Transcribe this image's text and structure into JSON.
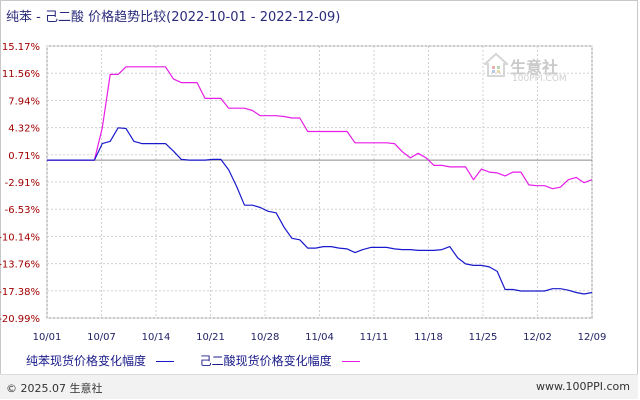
{
  "title": {
    "product_a": "纯苯",
    "separator": "-",
    "product_b": "己二酸",
    "label": "价格趋势比较",
    "range": "(2022-10-01 - 2022-12-09)"
  },
  "watermark": {
    "name": "生意社",
    "url": "100PPI.COM"
  },
  "footer": {
    "copyright": "© 2025.07 生意社",
    "site": "www.100PPI.com"
  },
  "colors": {
    "series_a": "#1a1acc",
    "series_b": "#e61ee6",
    "grid": "#d0d0d0",
    "ytick": "#a00000"
  },
  "chart_data": {
    "type": "line",
    "title": "纯苯 - 己二酸 价格趋势比较(2022-10-01 - 2022-12-09)",
    "y_ticks": [
      "15.17%",
      "11.56%",
      "7.94%",
      "4.32%",
      "0.71%",
      "-2.91%",
      "-6.53%",
      "-10.14%",
      "-13.76%",
      "-17.38%",
      "-20.99%"
    ],
    "x_ticks": [
      "10/01",
      "10/07",
      "10/14",
      "10/21",
      "10/28",
      "11/04",
      "11/11",
      "11/18",
      "11/25",
      "12/02",
      "12/09"
    ],
    "ylim": [
      -20.99,
      15.17
    ],
    "xlim": [
      "2022-10-01",
      "2022-12-09"
    ],
    "grid": true,
    "baseline": 0,
    "legend_placement": "bottom",
    "series": [
      {
        "name": "纯苯现货价格变化幅度",
        "points": [
          [
            "2022-10-01",
            0
          ],
          [
            "2022-10-07",
            0
          ],
          [
            "2022-10-08",
            2.2
          ],
          [
            "2022-10-09",
            2.5
          ],
          [
            "2022-10-10",
            4.3
          ],
          [
            "2022-10-11",
            4.2
          ],
          [
            "2022-10-12",
            2.5
          ],
          [
            "2022-10-13",
            2.2
          ],
          [
            "2022-10-14",
            2.2
          ],
          [
            "2022-10-15",
            2.2
          ],
          [
            "2022-10-16",
            2.2
          ],
          [
            "2022-10-17",
            1.2
          ],
          [
            "2022-10-18",
            0.1
          ],
          [
            "2022-10-19",
            0
          ],
          [
            "2022-10-20",
            0
          ],
          [
            "2022-10-21",
            0
          ],
          [
            "2022-10-22",
            0.1
          ],
          [
            "2022-10-23",
            0.1
          ],
          [
            "2022-10-24",
            -1.3
          ],
          [
            "2022-10-25",
            -3.5
          ],
          [
            "2022-10-26",
            -6.0
          ],
          [
            "2022-10-27",
            -6.0
          ],
          [
            "2022-10-28",
            -6.3
          ],
          [
            "2022-10-29",
            -6.8
          ],
          [
            "2022-10-30",
            -7.0
          ],
          [
            "2022-10-31",
            -8.9
          ],
          [
            "2022-11-01",
            -10.4
          ],
          [
            "2022-11-02",
            -10.6
          ],
          [
            "2022-11-03",
            -11.7
          ],
          [
            "2022-11-04",
            -11.7
          ],
          [
            "2022-11-05",
            -11.5
          ],
          [
            "2022-11-06",
            -11.5
          ],
          [
            "2022-11-07",
            -11.7
          ],
          [
            "2022-11-08",
            -11.8
          ],
          [
            "2022-11-09",
            -12.3
          ],
          [
            "2022-11-10",
            -11.9
          ],
          [
            "2022-11-11",
            -11.6
          ],
          [
            "2022-11-12",
            -11.6
          ],
          [
            "2022-11-13",
            -11.6
          ],
          [
            "2022-11-14",
            -11.8
          ],
          [
            "2022-11-15",
            -11.9
          ],
          [
            "2022-11-16",
            -11.9
          ],
          [
            "2022-11-17",
            -12.0
          ],
          [
            "2022-11-18",
            -12.0
          ],
          [
            "2022-11-19",
            -12.0
          ],
          [
            "2022-11-20",
            -11.9
          ],
          [
            "2022-11-21",
            -11.5
          ],
          [
            "2022-11-22",
            -13.0
          ],
          [
            "2022-11-23",
            -13.8
          ],
          [
            "2022-11-24",
            -14.0
          ],
          [
            "2022-11-25",
            -14.0
          ],
          [
            "2022-11-26",
            -14.2
          ],
          [
            "2022-11-27",
            -14.8
          ],
          [
            "2022-11-28",
            -17.2
          ],
          [
            "2022-11-29",
            -17.2
          ],
          [
            "2022-11-30",
            -17.4
          ],
          [
            "2022-12-01",
            -17.4
          ],
          [
            "2022-12-02",
            -17.4
          ],
          [
            "2022-12-03",
            -17.4
          ],
          [
            "2022-12-04",
            -17.1
          ],
          [
            "2022-12-05",
            -17.1
          ],
          [
            "2022-12-06",
            -17.3
          ],
          [
            "2022-12-07",
            -17.6
          ],
          [
            "2022-12-08",
            -17.8
          ],
          [
            "2022-12-09",
            -17.6
          ]
        ]
      },
      {
        "name": "己二酸现货价格变化幅度",
        "points": [
          [
            "2022-10-01",
            0
          ],
          [
            "2022-10-07",
            0
          ],
          [
            "2022-10-08",
            4.3
          ],
          [
            "2022-10-09",
            11.4
          ],
          [
            "2022-10-10",
            11.4
          ],
          [
            "2022-10-11",
            12.4
          ],
          [
            "2022-10-12",
            12.4
          ],
          [
            "2022-10-13",
            12.4
          ],
          [
            "2022-10-14",
            12.4
          ],
          [
            "2022-10-15",
            12.4
          ],
          [
            "2022-10-16",
            12.4
          ],
          [
            "2022-10-17",
            10.8
          ],
          [
            "2022-10-18",
            10.3
          ],
          [
            "2022-10-19",
            10.3
          ],
          [
            "2022-10-20",
            10.3
          ],
          [
            "2022-10-21",
            8.2
          ],
          [
            "2022-10-22",
            8.2
          ],
          [
            "2022-10-23",
            8.2
          ],
          [
            "2022-10-24",
            6.9
          ],
          [
            "2022-10-25",
            6.9
          ],
          [
            "2022-10-26",
            6.9
          ],
          [
            "2022-10-27",
            6.6
          ],
          [
            "2022-10-28",
            5.9
          ],
          [
            "2022-10-29",
            5.9
          ],
          [
            "2022-10-30",
            5.9
          ],
          [
            "2022-10-31",
            5.8
          ],
          [
            "2022-11-01",
            5.6
          ],
          [
            "2022-11-02",
            5.6
          ],
          [
            "2022-11-03",
            3.8
          ],
          [
            "2022-11-04",
            3.8
          ],
          [
            "2022-11-05",
            3.8
          ],
          [
            "2022-11-06",
            3.8
          ],
          [
            "2022-11-07",
            3.8
          ],
          [
            "2022-11-08",
            3.8
          ],
          [
            "2022-11-09",
            2.3
          ],
          [
            "2022-11-10",
            2.3
          ],
          [
            "2022-11-11",
            2.3
          ],
          [
            "2022-11-12",
            2.3
          ],
          [
            "2022-11-13",
            2.3
          ],
          [
            "2022-11-14",
            2.2
          ],
          [
            "2022-11-15",
            1.1
          ],
          [
            "2022-11-16",
            0.3
          ],
          [
            "2022-11-17",
            0.9
          ],
          [
            "2022-11-18",
            0.3
          ],
          [
            "2022-11-19",
            -0.7
          ],
          [
            "2022-11-20",
            -0.7
          ],
          [
            "2022-11-21",
            -0.9
          ],
          [
            "2022-11-22",
            -0.9
          ],
          [
            "2022-11-23",
            -0.9
          ],
          [
            "2022-11-24",
            -2.6
          ],
          [
            "2022-11-25",
            -1.2
          ],
          [
            "2022-11-26",
            -1.6
          ],
          [
            "2022-11-27",
            -1.7
          ],
          [
            "2022-11-28",
            -2.1
          ],
          [
            "2022-11-29",
            -1.6
          ],
          [
            "2022-11-30",
            -1.6
          ],
          [
            "2022-12-01",
            -3.3
          ],
          [
            "2022-12-02",
            -3.4
          ],
          [
            "2022-12-03",
            -3.4
          ],
          [
            "2022-12-04",
            -3.8
          ],
          [
            "2022-12-05",
            -3.6
          ],
          [
            "2022-12-06",
            -2.6
          ],
          [
            "2022-12-07",
            -2.3
          ],
          [
            "2022-12-08",
            -3.0
          ],
          [
            "2022-12-09",
            -2.6
          ]
        ]
      }
    ]
  }
}
